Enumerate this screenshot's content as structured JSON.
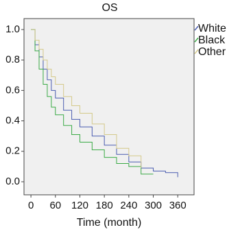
{
  "chart_data": {
    "type": "line",
    "title": "OS",
    "x_label": "Time (month)",
    "x": [
      0,
      10,
      20,
      30,
      40,
      50,
      60,
      80,
      100,
      120,
      150,
      180,
      210,
      240,
      270,
      300,
      330,
      360
    ],
    "series": [
      {
        "name": "White",
        "color": "#4a5cb0",
        "values": [
          1.0,
          0.9,
          0.82,
          0.74,
          0.67,
          0.6,
          0.55,
          0.47,
          0.41,
          0.36,
          0.3,
          0.24,
          0.18,
          0.13,
          0.09,
          0.07,
          0.06,
          0.03
        ]
      },
      {
        "name": "Black",
        "color": "#3aaa45",
        "values": [
          1.0,
          0.86,
          0.74,
          0.64,
          0.56,
          0.49,
          0.44,
          0.37,
          0.31,
          0.26,
          0.21,
          0.16,
          0.12,
          0.1,
          0.05,
          0.05,
          null,
          null
        ]
      },
      {
        "name": "Other",
        "color": "#d4c98a",
        "values": [
          1.0,
          0.93,
          0.87,
          0.8,
          0.74,
          0.69,
          0.64,
          0.56,
          0.5,
          0.45,
          0.38,
          0.31,
          0.22,
          0.17,
          0.09,
          null,
          null,
          null
        ]
      }
    ],
    "xlim": [
      -17,
      400
    ],
    "xticks": [
      0,
      60,
      120,
      180,
      240,
      300,
      360
    ],
    "ylim": [
      -0.086,
      1.072
    ],
    "yticks": [
      {
        "value": 0,
        "label": "0.0"
      },
      0.2,
      0.4,
      0.6,
      0.8,
      {
        "value": 1,
        "label": "1.0"
      }
    ],
    "legend": "right"
  }
}
